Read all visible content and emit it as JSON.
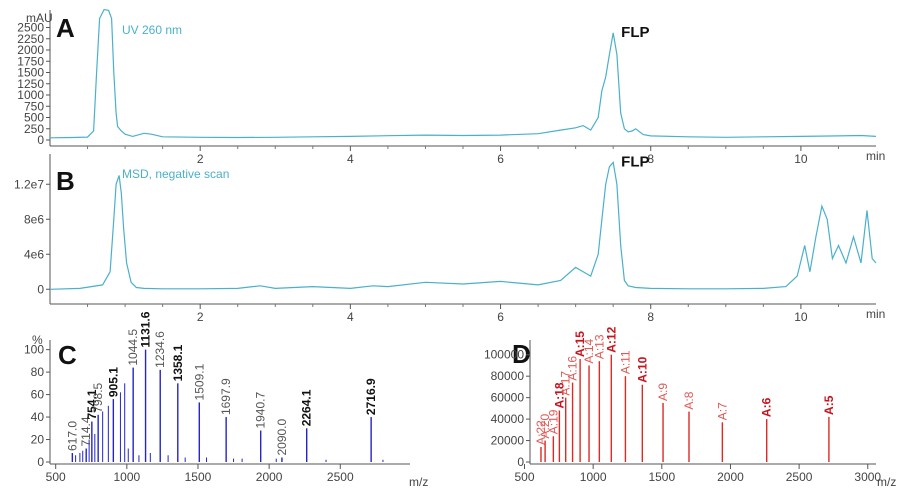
{
  "chart_data": [
    {
      "panel": "A",
      "type": "line",
      "trace_label": "UV 260 nm",
      "y_unit": "mAU",
      "x_unit": "min",
      "xlim": [
        0,
        11
      ],
      "ylim": [
        0,
        2800
      ],
      "xticks": [
        2,
        4,
        6,
        8,
        10
      ],
      "yticks": [
        0,
        250,
        500,
        750,
        1000,
        1250,
        1500,
        1750,
        2000,
        2250,
        2500
      ],
      "peak_annotation": {
        "label": "FLP",
        "x": 7.5,
        "y": 2380
      },
      "color": "#4ab0cc",
      "x": [
        -0.35,
        0.0,
        0.3,
        0.5,
        0.58,
        0.62,
        0.66,
        0.72,
        0.78,
        0.82,
        0.85,
        0.88,
        0.9,
        0.95,
        1.0,
        1.1,
        1.25,
        1.35,
        1.5,
        2.0,
        2.5,
        3.0,
        3.5,
        4.0,
        4.5,
        5.0,
        5.5,
        6.0,
        6.5,
        6.8,
        7.0,
        7.1,
        7.2,
        7.3,
        7.35,
        7.4,
        7.45,
        7.5,
        7.55,
        7.6,
        7.65,
        7.7,
        7.75,
        7.8,
        7.9,
        8.0,
        8.5,
        9.0,
        9.5,
        10.0,
        10.5,
        10.8,
        11.0
      ],
      "y": [
        50,
        50,
        55,
        65,
        200,
        1500,
        2700,
        2900,
        2880,
        2700,
        1500,
        600,
        300,
        200,
        130,
        80,
        150,
        130,
        70,
        60,
        55,
        60,
        70,
        80,
        95,
        110,
        100,
        110,
        140,
        220,
        270,
        320,
        220,
        500,
        1100,
        1400,
        1900,
        2380,
        1900,
        600,
        250,
        180,
        200,
        250,
        120,
        90,
        70,
        60,
        70,
        80,
        90,
        100,
        80
      ]
    },
    {
      "panel": "B",
      "type": "line",
      "trace_label": "MSD, negative scan",
      "x_unit": "min",
      "xlim": [
        0,
        11
      ],
      "ylim": [
        -1000000,
        15000000
      ],
      "xticks": [
        2,
        4,
        6,
        8,
        10
      ],
      "yticks": [
        0,
        4000000,
        8000000,
        12000000
      ],
      "ytick_labels": [
        "0",
        "4e6",
        "8e6",
        "1.2e7"
      ],
      "peak_annotation": {
        "label": "FLP",
        "x": 7.5,
        "y": 14500000
      },
      "color": "#4ab0cc",
      "x": [
        -0.35,
        0.0,
        0.4,
        0.7,
        0.8,
        0.85,
        0.88,
        0.92,
        0.95,
        0.98,
        1.02,
        1.08,
        1.15,
        1.25,
        1.5,
        2.0,
        2.5,
        2.8,
        3.0,
        3.5,
        4.0,
        4.3,
        4.5,
        5.0,
        5.5,
        6.0,
        6.5,
        6.8,
        7.0,
        7.2,
        7.3,
        7.35,
        7.4,
        7.45,
        7.5,
        7.55,
        7.6,
        7.65,
        7.7,
        7.8,
        8.0,
        8.5,
        9.0,
        9.5,
        9.8,
        9.95,
        10.05,
        10.12,
        10.2,
        10.28,
        10.35,
        10.42,
        10.5,
        10.6,
        10.7,
        10.8,
        10.88,
        10.95,
        11.0
      ],
      "y": [
        0,
        0,
        100000,
        500000,
        2000000,
        8000000,
        12000000,
        13000000,
        11000000,
        7000000,
        3000000,
        800000,
        200000,
        100000,
        50000,
        50000,
        100000,
        400000,
        100000,
        300000,
        100000,
        400000,
        300000,
        800000,
        600000,
        900000,
        500000,
        1000000,
        2500000,
        1500000,
        4000000,
        8000000,
        12000000,
        14000000,
        14500000,
        12000000,
        5000000,
        1000000,
        400000,
        200000,
        100000,
        50000,
        50000,
        100000,
        300000,
        1500000,
        5000000,
        2000000,
        6000000,
        9500000,
        8000000,
        3500000,
        5000000,
        3000000,
        6000000,
        3000000,
        9000000,
        3500000,
        3000000
      ]
    },
    {
      "panel": "C",
      "type": "bar",
      "y_unit": "%",
      "x_unit": "m/z",
      "xlim": [
        460,
        2990
      ],
      "ylim": [
        0,
        105
      ],
      "xticks": [
        500,
        1000,
        1500,
        2000,
        2500
      ],
      "yticks": [
        0,
        20,
        40,
        60,
        80,
        100
      ],
      "color": "#2424c8",
      "peaks": [
        {
          "mz": 617.0,
          "intensity": 8,
          "label": "617.0",
          "bold": false
        },
        {
          "mz": 714.4,
          "intensity": 12,
          "label": "714.4",
          "bold": false
        },
        {
          "mz": 754.1,
          "intensity": 36,
          "label": "754.1",
          "bold": true
        },
        {
          "mz": 798.5,
          "intensity": 42,
          "label": "798.5",
          "bold": false
        },
        {
          "mz": 905.1,
          "intensity": 56,
          "label": "905.1",
          "bold": true
        },
        {
          "mz": 1044.5,
          "intensity": 84,
          "label": "1044.5",
          "bold": false
        },
        {
          "mz": 1131.6,
          "intensity": 100,
          "label": "1131.6",
          "bold": true
        },
        {
          "mz": 1234.6,
          "intensity": 82,
          "label": "1234.6",
          "bold": false
        },
        {
          "mz": 1358.1,
          "intensity": 70,
          "label": "1358.1",
          "bold": true
        },
        {
          "mz": 1509.1,
          "intensity": 53,
          "label": "1509.1",
          "bold": false
        },
        {
          "mz": 1697.9,
          "intensity": 40,
          "label": "1697.9",
          "bold": false
        },
        {
          "mz": 1940.7,
          "intensity": 28,
          "label": "1940.7",
          "bold": false
        },
        {
          "mz": 2090.0,
          "intensity": 4,
          "label": "2090.0",
          "bold": false
        },
        {
          "mz": 2264.1,
          "intensity": 30,
          "label": "2264.1",
          "bold": true
        },
        {
          "mz": 2716.9,
          "intensity": 40,
          "label": "2716.9",
          "bold": true
        }
      ],
      "minor_peaks": [
        {
          "mz": 640,
          "intensity": 6
        },
        {
          "mz": 670,
          "intensity": 8
        },
        {
          "mz": 690,
          "intensity": 10
        },
        {
          "mz": 735,
          "intensity": 20
        },
        {
          "mz": 775,
          "intensity": 25
        },
        {
          "mz": 830,
          "intensity": 45
        },
        {
          "mz": 870,
          "intensity": 50
        },
        {
          "mz": 955,
          "intensity": 62
        },
        {
          "mz": 985,
          "intensity": 70
        },
        {
          "mz": 1010,
          "intensity": 12
        },
        {
          "mz": 1085,
          "intensity": 6
        },
        {
          "mz": 1165,
          "intensity": 8
        },
        {
          "mz": 1290,
          "intensity": 6
        },
        {
          "mz": 1410,
          "intensity": 4
        },
        {
          "mz": 1560,
          "intensity": 4
        },
        {
          "mz": 1750,
          "intensity": 3
        },
        {
          "mz": 1810,
          "intensity": 3
        },
        {
          "mz": 2050,
          "intensity": 3
        },
        {
          "mz": 2400,
          "intensity": 2
        },
        {
          "mz": 2800,
          "intensity": 2
        }
      ]
    },
    {
      "panel": "D",
      "type": "bar",
      "x_unit": "m/z",
      "xlim": [
        540,
        3060
      ],
      "ylim": [
        0,
        110000
      ],
      "xticks": [
        500,
        1000,
        1500,
        2000,
        2500,
        3000
      ],
      "yticks": [
        0,
        20000,
        40000,
        60000,
        80000,
        100000
      ],
      "color": "#dd2a22",
      "peaks": [
        {
          "mz": 620,
          "intensity": 14000,
          "label": "A:22",
          "bold": false
        },
        {
          "mz": 650,
          "intensity": 20000,
          "label": "A:20",
          "bold": false
        },
        {
          "mz": 710,
          "intensity": 24000,
          "label": "A:19",
          "bold": false
        },
        {
          "mz": 754,
          "intensity": 48000,
          "label": "A:18",
          "bold": true
        },
        {
          "mz": 800,
          "intensity": 60000,
          "label": "A:17",
          "bold": false
        },
        {
          "mz": 850,
          "intensity": 74000,
          "label": "A:16",
          "bold": false
        },
        {
          "mz": 905,
          "intensity": 96000,
          "label": "A:15",
          "bold": true
        },
        {
          "mz": 970,
          "intensity": 90000,
          "label": "A:14",
          "bold": false
        },
        {
          "mz": 1045,
          "intensity": 94000,
          "label": "A:13",
          "bold": false
        },
        {
          "mz": 1132,
          "intensity": 100000,
          "label": "A:12",
          "bold": true
        },
        {
          "mz": 1235,
          "intensity": 80000,
          "label": "A:11",
          "bold": false
        },
        {
          "mz": 1358,
          "intensity": 72000,
          "label": "A:10",
          "bold": true
        },
        {
          "mz": 1509,
          "intensity": 55000,
          "label": "A:9",
          "bold": false
        },
        {
          "mz": 1698,
          "intensity": 47000,
          "label": "A:8",
          "bold": false
        },
        {
          "mz": 1941,
          "intensity": 37000,
          "label": "A:7",
          "bold": false
        },
        {
          "mz": 2264,
          "intensity": 40000,
          "label": "A:6",
          "bold": true
        },
        {
          "mz": 2717,
          "intensity": 42000,
          "label": "A:5",
          "bold": true
        }
      ]
    }
  ],
  "panels": {
    "A": {
      "letter": "A",
      "unit": "mAU",
      "trace_label": "UV 260 nm",
      "peak_label": "FLP",
      "x_unit": "min"
    },
    "B": {
      "letter": "B",
      "trace_label": "MSD, negative scan",
      "peak_label": "FLP",
      "x_unit": "min"
    },
    "C": {
      "letter": "C",
      "unit": "%",
      "x_unit": "m/z"
    },
    "D": {
      "letter": "D",
      "x_unit": "m/z"
    }
  }
}
